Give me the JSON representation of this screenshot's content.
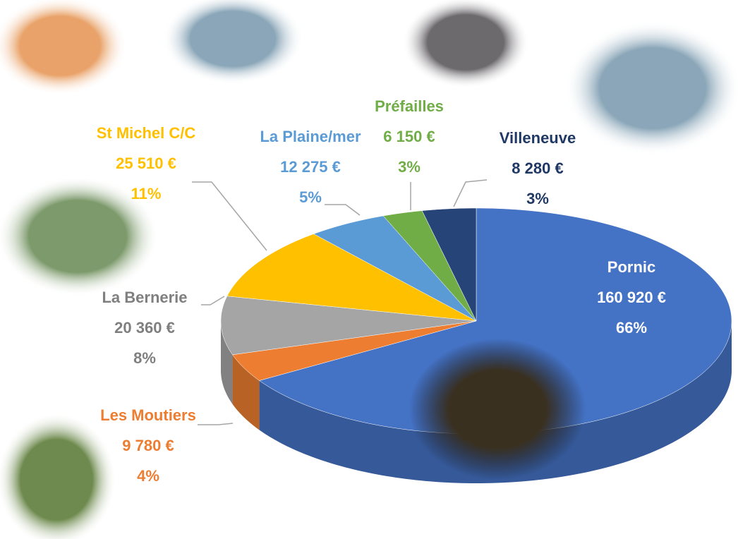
{
  "chart_data": {
    "type": "pie3d",
    "categories": [
      "Pornic",
      "Les Moutiers",
      "La Bernerie",
      "St Michel C/C",
      "La Plaine/mer",
      "Préfailles",
      "Villeneuve"
    ],
    "values": [
      160920,
      9780,
      20360,
      25510,
      12275,
      6150,
      8280
    ],
    "value_labels": [
      "160 920 €",
      "9 780 €",
      "20 360 €",
      "25 510 €",
      "12 275 €",
      "6 150 €",
      "8 280 €"
    ],
    "percents": [
      66,
      4,
      8,
      11,
      5,
      3,
      3
    ],
    "percent_labels": [
      "66%",
      "4%",
      "8%",
      "11%",
      "5%",
      "3%",
      "3%"
    ],
    "colors": [
      "#4472c4",
      "#ed7d31",
      "#a5a5a5",
      "#ffc000",
      "#5b9bd5",
      "#70ad47",
      "#264478"
    ],
    "label_colors": [
      "#ffffff",
      "#ed7d31",
      "#7f7f7f",
      "#ffc000",
      "#5b9bd5",
      "#70ad47",
      "#1f3864"
    ]
  }
}
